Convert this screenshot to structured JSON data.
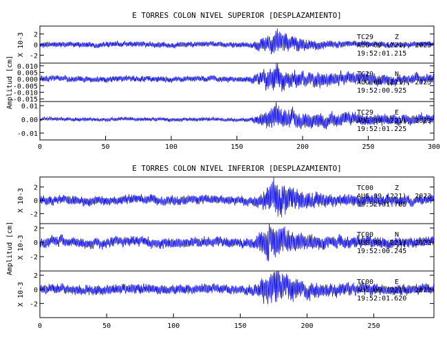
{
  "colors": {
    "trace": "#0000ee",
    "axes": "#000000",
    "background": "#ffffff"
  },
  "chart_data": [
    {
      "type": "line",
      "title": "E TORRES COLON NIVEL SUPERIOR [DESPLAZAMIENTO]",
      "ylabel": "Amplitud [cm]",
      "xlim": [
        0,
        300
      ],
      "xticks": [
        "0",
        "50",
        "100",
        "150",
        "200",
        "250",
        "300"
      ],
      "grid": false,
      "traces": [
        {
          "station": "TC29",
          "component": "Z",
          "date": "AUG 09 (221), 2023",
          "time": "19:52:01.215",
          "scale_label": "X 10-3",
          "ylim": [
            -3.5,
            3.5
          ],
          "yticks": [
            "2",
            "0",
            "-2"
          ],
          "ytick_values": [
            2,
            0,
            -2
          ],
          "pre_noise": 0.6,
          "peak": 2.8,
          "arrival_s": 160,
          "max_s": 180,
          "coda": 0.55,
          "seed": 11
        },
        {
          "station": "TC29",
          "component": "N",
          "date": "AUG 09 (221), 2023",
          "time": "19:52:00.925",
          "scale_label": "",
          "ylim": [
            -0.017,
            0.012
          ],
          "yticks": [
            "0.010",
            "0.005",
            "0.000",
            "-0.005",
            "-0.010",
            "-0.015"
          ],
          "ytick_values": [
            0.01,
            0.005,
            0.0,
            -0.005,
            -0.01,
            -0.015
          ],
          "pre_noise": 0.0025,
          "peak": 0.012,
          "arrival_s": 160,
          "max_s": 180,
          "coda": 0.006,
          "seed": 23
        },
        {
          "station": "TC29",
          "component": "E",
          "date": "AUG 09 (221), 2023",
          "time": "19:52:01.225",
          "scale_label": "",
          "ylim": [
            -0.015,
            0.013
          ],
          "yticks": [
            "0.01",
            "0.00",
            "-0.01"
          ],
          "ytick_values": [
            0.01,
            0.0,
            -0.01
          ],
          "pre_noise": 0.0015,
          "peak": 0.011,
          "arrival_s": 160,
          "max_s": 180,
          "coda": 0.007,
          "seed": 37
        }
      ]
    },
    {
      "type": "line",
      "title": "E TORRES COLON NIVEL INFERIOR [DESPLAZAMIENTO]",
      "ylabel": "Amplitud [cm]",
      "xlim": [
        0,
        295
      ],
      "xticks": [
        "0",
        "50",
        "100",
        "150",
        "200",
        "250"
      ],
      "grid": false,
      "traces": [
        {
          "station": "TC00",
          "component": "Z",
          "date": "AUG 09 (221), 2023",
          "time": "19:52:01.785",
          "scale_label": "X 10-3",
          "ylim": [
            -3.5,
            3.5
          ],
          "yticks": [
            "2",
            "0",
            "-2"
          ],
          "ytick_values": [
            2,
            0,
            -2
          ],
          "pre_noise": 0.8,
          "peak": 3.2,
          "arrival_s": 160,
          "max_s": 178,
          "coda": 0.8,
          "seed": 51
        },
        {
          "station": "TC00",
          "component": "N",
          "date": "AUG 09 (221), 2023",
          "time": "19:52:00.245",
          "scale_label": "X 10-3",
          "ylim": [
            -4.0,
            2.6
          ],
          "yticks": [
            "2",
            "0",
            "-2"
          ],
          "ytick_values": [
            2,
            0,
            -2
          ],
          "pre_noise": 0.8,
          "peak": 3.2,
          "arrival_s": 160,
          "max_s": 172,
          "coda": 0.8,
          "seed": 67
        },
        {
          "station": "TC00",
          "component": "E",
          "date": "AUG 09 (221), 2023",
          "time": "19:52:01.620",
          "scale_label": "X 10-3",
          "ylim": [
            -4.0,
            2.6
          ],
          "yticks": [
            "2",
            "0",
            "-2"
          ],
          "ytick_values": [
            2,
            0,
            -2
          ],
          "pre_noise": 0.8,
          "peak": 3.2,
          "arrival_s": 160,
          "max_s": 176,
          "coda": 0.8,
          "seed": 83
        }
      ]
    }
  ]
}
